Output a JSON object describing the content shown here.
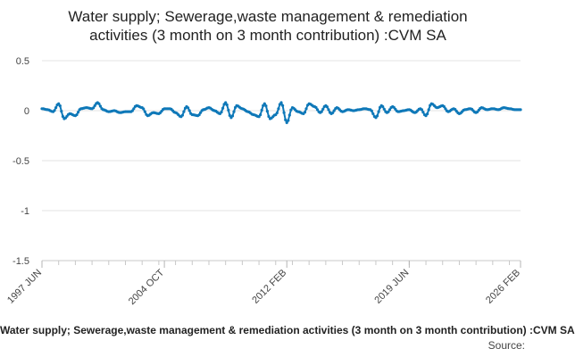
{
  "chart_data": {
    "type": "line",
    "title": "Water supply; Sewerage,waste management & remediation activities (3 month on 3 month contribution) :CVM SA",
    "title_lines": [
      "Water supply; Sewerage,waste management & remediation",
      "activities (3 month on 3 month contribution) :CVM SA"
    ],
    "xlabel": "",
    "ylabel": "",
    "ylim": [
      -1.5,
      0.5
    ],
    "yticks": [
      0.5,
      0,
      -0.5,
      -1,
      -1.5
    ],
    "ytick_labels": [
      "0.5",
      "0",
      "-0.5",
      "-1",
      "-1.5"
    ],
    "x_range": [
      "1997-06",
      "2026-02"
    ],
    "xtick_labels": [
      "1997 JUN",
      "2004 OCT",
      "2012 FEB",
      "2019 JUN",
      "2026 FEB"
    ],
    "xtick_dates": [
      "1997-06",
      "2004-10",
      "2012-02",
      "2019-06",
      "2026-02"
    ],
    "grid": true,
    "legend_position": "bottom",
    "series": [
      {
        "name": "Water supply; Sewerage,waste management & remediation activities (3 month on 3 month contribution) :CVM SA",
        "color": "#0e78b8",
        "points": [
          [
            "1997-06",
            0.02
          ],
          [
            "1997-10",
            0.01
          ],
          [
            "1998-02",
            -0.01
          ],
          [
            "1998-06",
            0.07
          ],
          [
            "1998-10",
            -0.08
          ],
          [
            "1999-02",
            -0.03
          ],
          [
            "1999-06",
            -0.05
          ],
          [
            "1999-10",
            0.02
          ],
          [
            "2000-02",
            0.03
          ],
          [
            "2000-06",
            0.02
          ],
          [
            "2000-10",
            0.08
          ],
          [
            "2001-02",
            0.01
          ],
          [
            "2001-06",
            -0.01
          ],
          [
            "2001-10",
            0.0
          ],
          [
            "2002-02",
            -0.02
          ],
          [
            "2002-06",
            -0.01
          ],
          [
            "2002-10",
            -0.01
          ],
          [
            "2003-02",
            0.05
          ],
          [
            "2003-06",
            0.03
          ],
          [
            "2003-10",
            -0.05
          ],
          [
            "2004-02",
            -0.02
          ],
          [
            "2004-06",
            -0.03
          ],
          [
            "2004-10",
            0.02
          ],
          [
            "2005-02",
            0.02
          ],
          [
            "2005-06",
            -0.02
          ],
          [
            "2005-10",
            -0.06
          ],
          [
            "2006-02",
            0.04
          ],
          [
            "2006-06",
            -0.04
          ],
          [
            "2006-10",
            -0.05
          ],
          [
            "2007-02",
            0.01
          ],
          [
            "2007-06",
            0.03
          ],
          [
            "2007-10",
            0.0
          ],
          [
            "2008-02",
            -0.03
          ],
          [
            "2008-06",
            0.08
          ],
          [
            "2008-10",
            -0.07
          ],
          [
            "2009-02",
            0.05
          ],
          [
            "2009-06",
            0.02
          ],
          [
            "2009-10",
            -0.01
          ],
          [
            "2010-02",
            -0.04
          ],
          [
            "2010-06",
            -0.06
          ],
          [
            "2010-10",
            0.07
          ],
          [
            "2011-02",
            -0.08
          ],
          [
            "2011-06",
            -0.04
          ],
          [
            "2011-10",
            0.08
          ],
          [
            "2012-02",
            -0.12
          ],
          [
            "2012-06",
            0.03
          ],
          [
            "2012-10",
            -0.01
          ],
          [
            "2013-02",
            -0.03
          ],
          [
            "2013-06",
            0.07
          ],
          [
            "2013-10",
            0.04
          ],
          [
            "2014-02",
            -0.02
          ],
          [
            "2014-06",
            0.05
          ],
          [
            "2014-10",
            -0.03
          ],
          [
            "2015-02",
            0.03
          ],
          [
            "2015-06",
            -0.01
          ],
          [
            "2015-10",
            0.01
          ],
          [
            "2016-02",
            0.0
          ],
          [
            "2016-06",
            0.01
          ],
          [
            "2016-10",
            0.02
          ],
          [
            "2017-02",
            0.01
          ],
          [
            "2017-06",
            -0.07
          ],
          [
            "2017-10",
            0.05
          ],
          [
            "2018-02",
            -0.02
          ],
          [
            "2018-06",
            0.04
          ],
          [
            "2018-10",
            -0.01
          ],
          [
            "2019-02",
            0.0
          ],
          [
            "2019-06",
            0.01
          ],
          [
            "2019-10",
            -0.02
          ],
          [
            "2020-02",
            0.02
          ],
          [
            "2020-06",
            -0.05
          ],
          [
            "2020-10",
            0.07
          ],
          [
            "2021-02",
            0.03
          ],
          [
            "2021-06",
            0.05
          ],
          [
            "2021-10",
            -0.01
          ],
          [
            "2022-02",
            0.02
          ],
          [
            "2022-06",
            -0.03
          ],
          [
            "2022-10",
            0.01
          ],
          [
            "2023-02",
            0.02
          ],
          [
            "2023-06",
            -0.02
          ],
          [
            "2023-10",
            0.03
          ],
          [
            "2024-02",
            0.01
          ],
          [
            "2024-06",
            0.02
          ],
          [
            "2024-10",
            0.01
          ],
          [
            "2025-02",
            0.03
          ],
          [
            "2025-06",
            0.02
          ],
          [
            "2025-10",
            0.01
          ],
          [
            "2026-02",
            0.01
          ]
        ]
      }
    ]
  },
  "legend_label": "Water supply; Sewerage,waste management & remediation activities (3 month on 3 month contribution) :CVM SA",
  "source_label": "Source:"
}
